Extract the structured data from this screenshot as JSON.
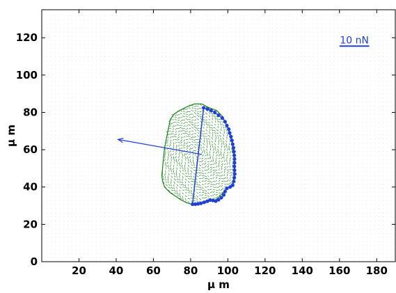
{
  "chart_data": {
    "type": "scatter",
    "title": "",
    "xlabel": "μ m",
    "ylabel": "μ m",
    "xlim": [
      0,
      190
    ],
    "ylim": [
      0,
      135
    ],
    "xticks": [
      20,
      40,
      60,
      80,
      100,
      120,
      140,
      160,
      180
    ],
    "yticks": [
      0,
      20,
      40,
      60,
      80,
      100,
      120
    ],
    "grid": false,
    "scale_bar": {
      "label": "10 nN",
      "x_start": 160,
      "x_end": 176,
      "y": 115.5
    },
    "colors": {
      "outline": "#1a7f1a",
      "vectors": "#2e8b2e",
      "highlight": "#1f3fd6",
      "field_dots": "#d3d3d3"
    },
    "cell_outline": [
      [
        86,
        84.5
      ],
      [
        82,
        84.5
      ],
      [
        78,
        83
      ],
      [
        74,
        81
      ],
      [
        71,
        79
      ],
      [
        69,
        76
      ],
      [
        68,
        71
      ],
      [
        67,
        66
      ],
      [
        66,
        61
      ],
      [
        65.5,
        56
      ],
      [
        65,
        51
      ],
      [
        64.5,
        46
      ],
      [
        65,
        43
      ],
      [
        66,
        40
      ],
      [
        69,
        37
      ],
      [
        72,
        35
      ],
      [
        75,
        33
      ],
      [
        78,
        31.5
      ],
      [
        80.5,
        30.8
      ],
      [
        83,
        30.8
      ],
      [
        86,
        31
      ],
      [
        89,
        32.2
      ],
      [
        91,
        33
      ],
      [
        93,
        32.6
      ],
      [
        95,
        34.5
      ],
      [
        97,
        36.5
      ],
      [
        99,
        38.5
      ],
      [
        101,
        40
      ],
      [
        102.5,
        42
      ],
      [
        103.5,
        46
      ],
      [
        103.8,
        50
      ],
      [
        103.5,
        54
      ],
      [
        103,
        58
      ],
      [
        102.5,
        62
      ],
      [
        101.8,
        66
      ],
      [
        100.5,
        70
      ],
      [
        99,
        74
      ],
      [
        97,
        78
      ],
      [
        94,
        81
      ],
      [
        90,
        82.5
      ],
      [
        86,
        84.5
      ]
    ],
    "highlight_edge": [
      [
        87,
        82.5
      ],
      [
        89,
        81.8
      ],
      [
        91,
        81
      ],
      [
        93,
        80
      ],
      [
        95,
        78.5
      ],
      [
        97,
        77
      ],
      [
        98.5,
        75
      ],
      [
        99.5,
        73
      ],
      [
        100.5,
        71
      ],
      [
        101,
        69
      ],
      [
        101.7,
        67
      ],
      [
        102.2,
        65
      ],
      [
        102.6,
        63
      ],
      [
        103,
        61
      ],
      [
        103.3,
        59
      ],
      [
        103.5,
        57
      ],
      [
        103.6,
        55
      ],
      [
        103.6,
        53
      ],
      [
        103.5,
        51
      ],
      [
        103.6,
        49
      ],
      [
        103.7,
        47
      ],
      [
        103.5,
        45
      ],
      [
        103.2,
        43
      ],
      [
        102.6,
        41
      ],
      [
        101.2,
        40
      ],
      [
        99.5,
        39.3
      ],
      [
        98.5,
        37.6
      ],
      [
        97.8,
        35.8
      ],
      [
        96.5,
        34.3
      ],
      [
        95,
        33.2
      ],
      [
        93.5,
        32.5
      ],
      [
        92,
        32.8
      ],
      [
        90.5,
        33
      ],
      [
        89,
        32.4
      ],
      [
        87.3,
        31.8
      ],
      [
        85.5,
        31.3
      ],
      [
        84,
        31
      ],
      [
        82.5,
        30.8
      ],
      [
        81,
        30.8
      ]
    ],
    "axis_line": [
      [
        87,
        82.5
      ],
      [
        81,
        30.8
      ]
    ],
    "force_arrow": {
      "from": [
        86,
        57.5
      ],
      "to": [
        41,
        65.5
      ]
    }
  }
}
